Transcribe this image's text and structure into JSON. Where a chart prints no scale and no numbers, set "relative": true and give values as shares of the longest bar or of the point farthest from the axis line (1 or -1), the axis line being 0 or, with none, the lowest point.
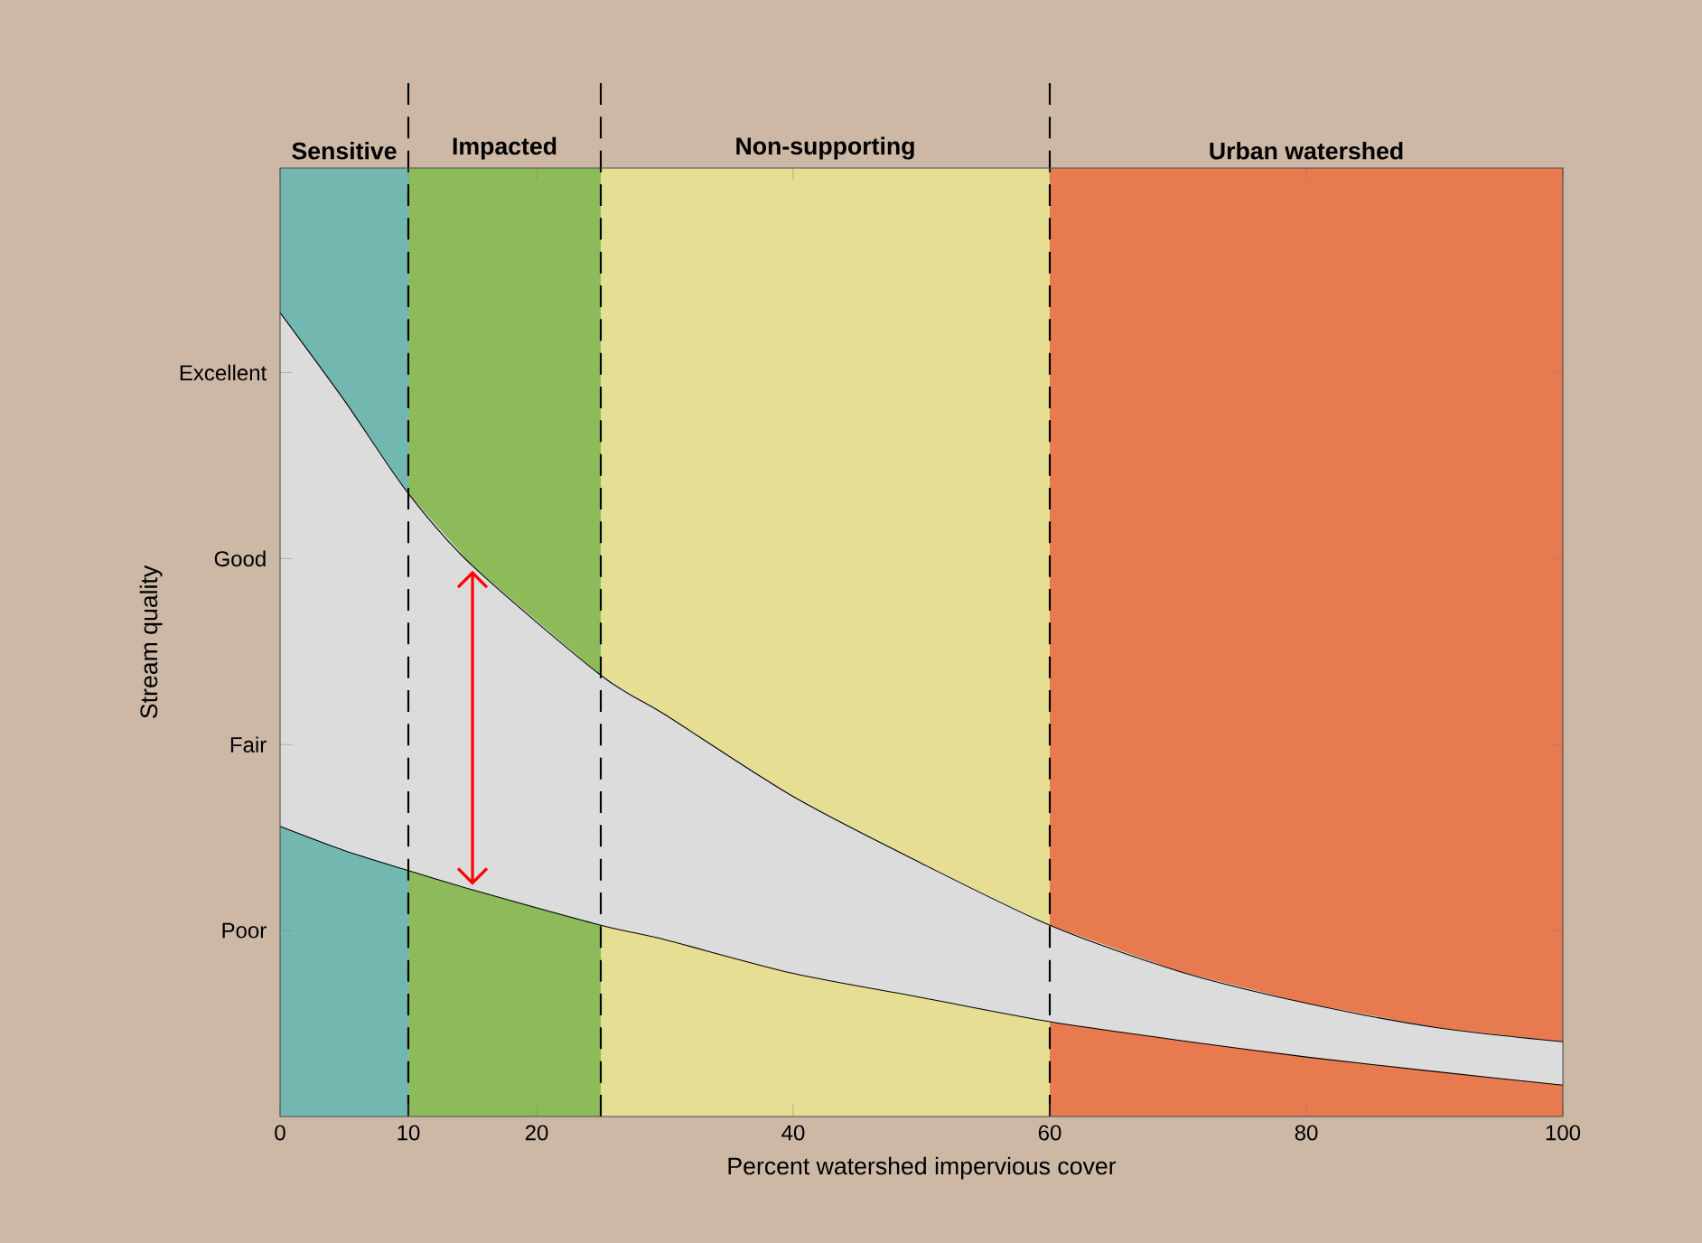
{
  "chart_data": {
    "type": "area",
    "xlabel": "Percent watershed impervious cover",
    "ylabel": "Stream quality",
    "relative": true,
    "x": [
      0,
      5,
      10,
      15,
      25,
      30,
      40,
      50,
      60,
      70,
      80,
      90,
      100
    ],
    "series": [
      {
        "type": "area",
        "color": "#dcdcdc",
        "values": [
          1,
          0.891,
          0.775,
          0.685,
          0.549,
          0.5,
          0.398,
          0.315,
          0.238,
          0.181,
          0.141,
          0.111,
          0.093
        ]
      },
      {
        "type": "line",
        "color": "#000000",
        "values": [
          0.361,
          0.331,
          0.306,
          0.282,
          0.238,
          0.22,
          0.178,
          0.148,
          0.118,
          0.095,
          0.074,
          0.056,
          0.039
        ]
      }
    ],
    "xlim": [
      0,
      100
    ],
    "xticks": [
      0,
      10,
      20,
      40,
      60,
      80,
      100
    ],
    "annotations": [
      "Poor",
      "Fair",
      "Good",
      "Excellent"
    ],
    "bands": [
      {
        "axis": "x",
        "from": 0,
        "to": 10,
        "label": "Sensitive",
        "color": "#72b8b0"
      },
      {
        "axis": "x",
        "from": 10,
        "to": 25,
        "label": "Impacted",
        "color": "#8dbb5a"
      },
      {
        "axis": "x",
        "from": 25,
        "to": 60,
        "label": "Non-supporting",
        "color": "#e6de92"
      },
      {
        "axis": "x",
        "from": 60,
        "to": 100,
        "label": "Urban watershed",
        "color": "#e87a50"
      }
    ],
    "ref_lines": [
      {
        "axis": "x",
        "value": 10,
        "line_style": "dashed"
      },
      {
        "axis": "x",
        "value": 25,
        "line_style": "dashed"
      },
      {
        "axis": "x",
        "value": 60,
        "line_style": "dashed"
      }
    ],
    "grid": false
  }
}
